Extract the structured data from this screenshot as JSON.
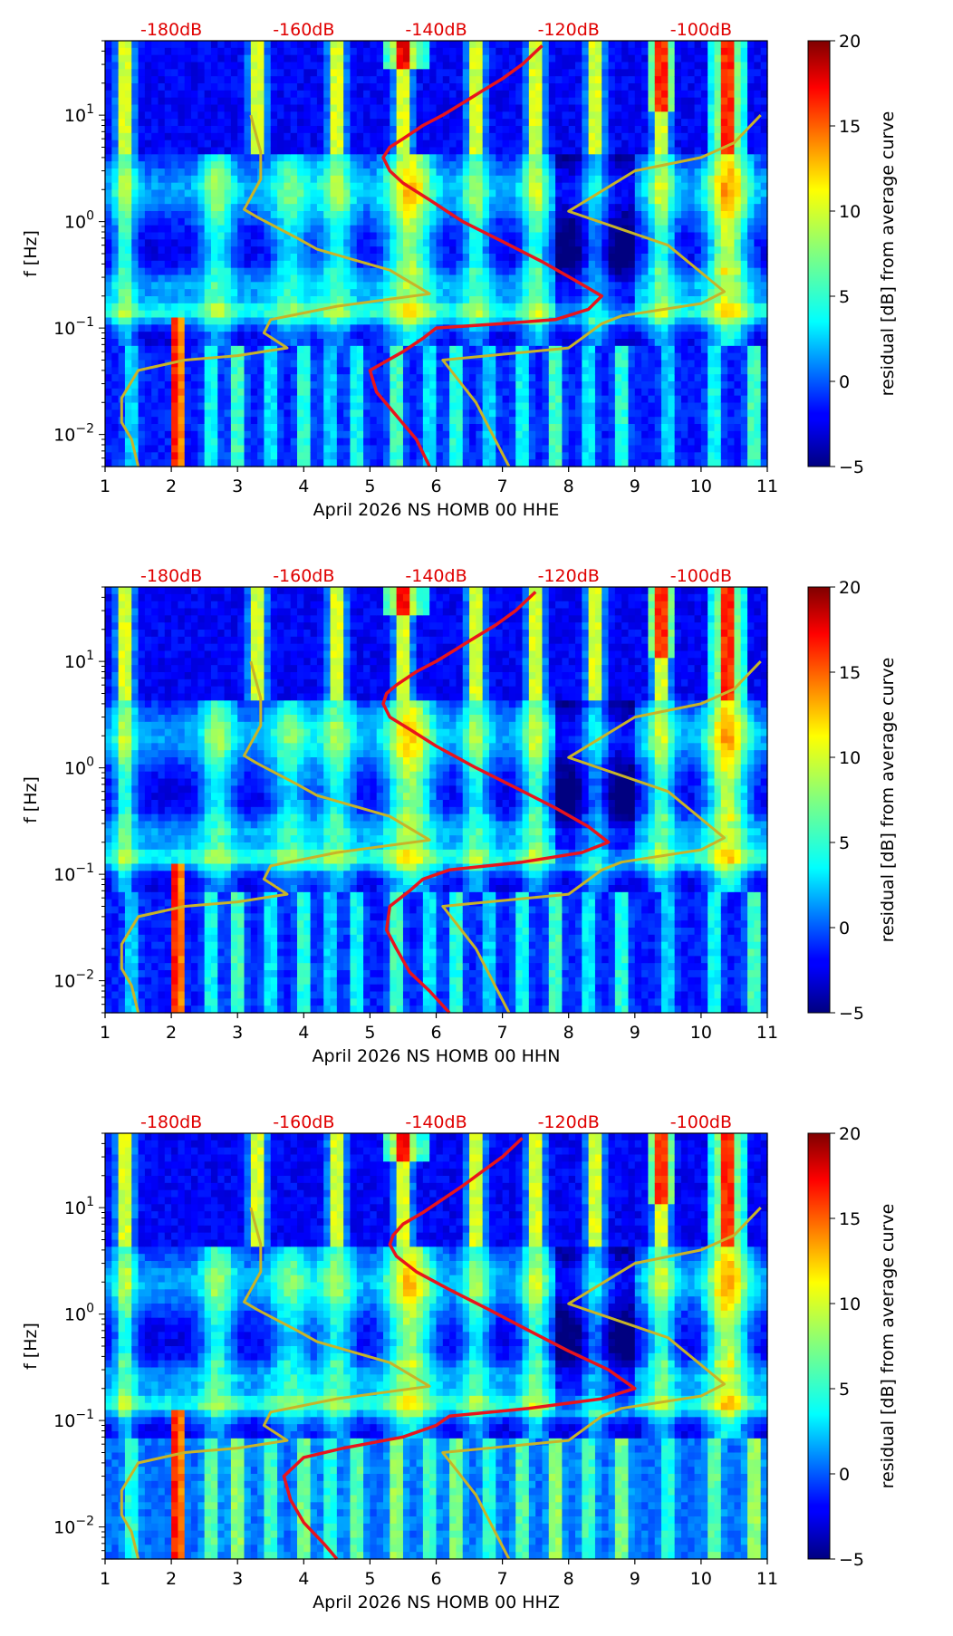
{
  "chart_data": [
    {
      "type": "heatmap",
      "title": "",
      "xlabel": "April 2026 NS HOMB 00 HHE",
      "ylabel": "f [Hz]",
      "xlim": [
        1,
        11
      ],
      "ylim": [
        0.005,
        50
      ],
      "y_scale": "log",
      "x_ticks": [
        "1",
        "2",
        "3",
        "4",
        "5",
        "6",
        "7",
        "8",
        "9",
        "10",
        "11"
      ],
      "y_ticks": [
        {
          "value": 0.01,
          "base": "10",
          "exp": "−2"
        },
        {
          "value": 0.1,
          "base": "10",
          "exp": "−1"
        },
        {
          "value": 1,
          "base": "10",
          "exp": "0"
        },
        {
          "value": 10,
          "base": "10",
          "exp": "1"
        }
      ],
      "top_db_labels": [
        {
          "x": 2.0,
          "label": "-180dB"
        },
        {
          "x": 4.0,
          "label": "-160dB"
        },
        {
          "x": 6.0,
          "label": "-140dB"
        },
        {
          "x": 8.0,
          "label": "-120dB"
        },
        {
          "x": 10.0,
          "label": "-100dB"
        }
      ],
      "colorbar": {
        "label": "residual [dB] from average curve",
        "min": -5,
        "max": 20,
        "ticks": [
          "20",
          "15",
          "10",
          "5",
          "0",
          "−5"
        ]
      },
      "red_curve": [
        [
          7.6,
          45
        ],
        [
          7.3,
          30
        ],
        [
          7.0,
          22
        ],
        [
          6.7,
          17
        ],
        [
          6.4,
          13
        ],
        [
          6.1,
          10
        ],
        [
          5.8,
          8
        ],
        [
          5.5,
          6
        ],
        [
          5.3,
          5
        ],
        [
          5.2,
          4
        ],
        [
          5.3,
          3
        ],
        [
          5.5,
          2.3
        ],
        [
          5.9,
          1.6
        ],
        [
          6.4,
          1.0
        ],
        [
          7.0,
          0.65
        ],
        [
          7.6,
          0.42
        ],
        [
          8.1,
          0.28
        ],
        [
          8.5,
          0.2
        ],
        [
          8.3,
          0.15
        ],
        [
          7.8,
          0.12
        ],
        [
          7.0,
          0.11
        ],
        [
          6.0,
          0.1
        ],
        [
          5.8,
          0.08
        ],
        [
          5.5,
          0.06
        ],
        [
          5.0,
          0.04
        ],
        [
          5.1,
          0.025
        ],
        [
          5.4,
          0.015
        ],
        [
          5.7,
          0.009
        ],
        [
          5.9,
          0.005
        ]
      ],
      "yellow_curve_left": [
        [
          1.5,
          0.005
        ],
        [
          1.4,
          0.009
        ],
        [
          1.25,
          0.013
        ],
        [
          1.25,
          0.022
        ],
        [
          1.5,
          0.04
        ],
        [
          2.2,
          0.05
        ],
        [
          3.0,
          0.055
        ],
        [
          3.75,
          0.065
        ],
        [
          3.4,
          0.09
        ],
        [
          3.5,
          0.12
        ],
        [
          4.5,
          0.16
        ],
        [
          5.9,
          0.21
        ],
        [
          5.3,
          0.35
        ],
        [
          4.2,
          0.55
        ],
        [
          3.9,
          0.7
        ],
        [
          3.3,
          1.1
        ],
        [
          3.1,
          1.3
        ],
        [
          3.35,
          2.5
        ],
        [
          3.35,
          4.5
        ],
        [
          3.2,
          10
        ]
      ],
      "yellow_curve_right": [
        [
          7.1,
          0.005
        ],
        [
          6.6,
          0.02
        ],
        [
          6.1,
          0.05
        ],
        [
          8.0,
          0.065
        ],
        [
          8.5,
          0.11
        ],
        [
          8.8,
          0.13
        ],
        [
          10.0,
          0.17
        ],
        [
          10.35,
          0.22
        ],
        [
          9.5,
          0.6
        ],
        [
          8.0,
          1.25
        ],
        [
          9.0,
          3.0
        ],
        [
          10.0,
          4.0
        ],
        [
          10.5,
          5.5
        ],
        [
          10.9,
          10
        ]
      ]
    },
    {
      "type": "heatmap",
      "title": "",
      "xlabel": "April 2026 NS HOMB 00 HHN",
      "ylabel": "f [Hz]",
      "xlim": [
        1,
        11
      ],
      "ylim": [
        0.005,
        50
      ],
      "y_scale": "log",
      "x_ticks": [
        "1",
        "2",
        "3",
        "4",
        "5",
        "6",
        "7",
        "8",
        "9",
        "10",
        "11"
      ],
      "y_ticks": [
        {
          "value": 0.01,
          "base": "10",
          "exp": "−2"
        },
        {
          "value": 0.1,
          "base": "10",
          "exp": "−1"
        },
        {
          "value": 1,
          "base": "10",
          "exp": "0"
        },
        {
          "value": 10,
          "base": "10",
          "exp": "1"
        }
      ],
      "top_db_labels": [
        {
          "x": 2.0,
          "label": "-180dB"
        },
        {
          "x": 4.0,
          "label": "-160dB"
        },
        {
          "x": 6.0,
          "label": "-140dB"
        },
        {
          "x": 8.0,
          "label": "-120dB"
        },
        {
          "x": 10.0,
          "label": "-100dB"
        }
      ],
      "colorbar": {
        "label": "residual [dB] from average curve",
        "min": -5,
        "max": 20,
        "ticks": [
          "20",
          "15",
          "10",
          "5",
          "0",
          "−5"
        ]
      },
      "red_curve": [
        [
          7.5,
          45
        ],
        [
          7.2,
          30
        ],
        [
          6.9,
          22
        ],
        [
          6.6,
          17
        ],
        [
          6.3,
          13
        ],
        [
          6.0,
          10
        ],
        [
          5.7,
          8
        ],
        [
          5.4,
          6
        ],
        [
          5.25,
          5
        ],
        [
          5.2,
          4
        ],
        [
          5.3,
          3
        ],
        [
          5.6,
          2.3
        ],
        [
          6.0,
          1.6
        ],
        [
          6.6,
          1.0
        ],
        [
          7.2,
          0.65
        ],
        [
          7.8,
          0.42
        ],
        [
          8.3,
          0.28
        ],
        [
          8.6,
          0.2
        ],
        [
          8.2,
          0.16
        ],
        [
          7.3,
          0.13
        ],
        [
          6.2,
          0.11
        ],
        [
          5.8,
          0.09
        ],
        [
          5.6,
          0.07
        ],
        [
          5.3,
          0.05
        ],
        [
          5.25,
          0.03
        ],
        [
          5.4,
          0.02
        ],
        [
          5.6,
          0.012
        ],
        [
          5.9,
          0.008
        ],
        [
          6.2,
          0.005
        ]
      ],
      "yellow_curve_left": [
        [
          1.5,
          0.005
        ],
        [
          1.4,
          0.009
        ],
        [
          1.25,
          0.013
        ],
        [
          1.25,
          0.022
        ],
        [
          1.5,
          0.04
        ],
        [
          2.2,
          0.05
        ],
        [
          3.0,
          0.055
        ],
        [
          3.75,
          0.065
        ],
        [
          3.4,
          0.09
        ],
        [
          3.5,
          0.12
        ],
        [
          4.5,
          0.16
        ],
        [
          5.9,
          0.21
        ],
        [
          5.3,
          0.35
        ],
        [
          4.2,
          0.55
        ],
        [
          3.9,
          0.7
        ],
        [
          3.3,
          1.1
        ],
        [
          3.1,
          1.3
        ],
        [
          3.35,
          2.5
        ],
        [
          3.35,
          4.5
        ],
        [
          3.2,
          10
        ]
      ],
      "yellow_curve_right": [
        [
          7.1,
          0.005
        ],
        [
          6.6,
          0.02
        ],
        [
          6.1,
          0.05
        ],
        [
          8.0,
          0.065
        ],
        [
          8.5,
          0.11
        ],
        [
          8.8,
          0.13
        ],
        [
          10.0,
          0.17
        ],
        [
          10.35,
          0.22
        ],
        [
          9.5,
          0.6
        ],
        [
          8.0,
          1.25
        ],
        [
          9.0,
          3.0
        ],
        [
          10.0,
          4.0
        ],
        [
          10.5,
          5.5
        ],
        [
          10.9,
          10
        ]
      ]
    },
    {
      "type": "heatmap",
      "title": "",
      "xlabel": "April 2026 NS HOMB 00 HHZ",
      "ylabel": "f [Hz]",
      "xlim": [
        1,
        11
      ],
      "ylim": [
        0.005,
        50
      ],
      "y_scale": "log",
      "x_ticks": [
        "1",
        "2",
        "3",
        "4",
        "5",
        "6",
        "7",
        "8",
        "9",
        "10",
        "11"
      ],
      "y_ticks": [
        {
          "value": 0.01,
          "base": "10",
          "exp": "−2"
        },
        {
          "value": 0.1,
          "base": "10",
          "exp": "−1"
        },
        {
          "value": 1,
          "base": "10",
          "exp": "0"
        },
        {
          "value": 10,
          "base": "10",
          "exp": "1"
        }
      ],
      "top_db_labels": [
        {
          "x": 2.0,
          "label": "-180dB"
        },
        {
          "x": 4.0,
          "label": "-160dB"
        },
        {
          "x": 6.0,
          "label": "-140dB"
        },
        {
          "x": 8.0,
          "label": "-120dB"
        },
        {
          "x": 10.0,
          "label": "-100dB"
        }
      ],
      "colorbar": {
        "label": "residual [dB] from average curve",
        "min": -5,
        "max": 20,
        "ticks": [
          "20",
          "15",
          "10",
          "5",
          "0",
          "−5"
        ]
      },
      "red_curve": [
        [
          7.3,
          45
        ],
        [
          7.0,
          30
        ],
        [
          6.7,
          22
        ],
        [
          6.4,
          16
        ],
        [
          6.1,
          12
        ],
        [
          5.8,
          9
        ],
        [
          5.5,
          7
        ],
        [
          5.35,
          5.5
        ],
        [
          5.3,
          4.5
        ],
        [
          5.4,
          3.5
        ],
        [
          5.7,
          2.5
        ],
        [
          6.2,
          1.7
        ],
        [
          6.8,
          1.1
        ],
        [
          7.4,
          0.7
        ],
        [
          8.0,
          0.45
        ],
        [
          8.6,
          0.3
        ],
        [
          9.0,
          0.2
        ],
        [
          8.5,
          0.16
        ],
        [
          7.4,
          0.13
        ],
        [
          6.2,
          0.11
        ],
        [
          6.0,
          0.09
        ],
        [
          5.5,
          0.07
        ],
        [
          4.6,
          0.055
        ],
        [
          4.0,
          0.045
        ],
        [
          3.7,
          0.03
        ],
        [
          3.8,
          0.018
        ],
        [
          4.0,
          0.011
        ],
        [
          4.3,
          0.007
        ],
        [
          4.5,
          0.005
        ]
      ],
      "yellow_curve_left": [
        [
          1.5,
          0.005
        ],
        [
          1.4,
          0.009
        ],
        [
          1.25,
          0.013
        ],
        [
          1.25,
          0.022
        ],
        [
          1.5,
          0.04
        ],
        [
          2.2,
          0.05
        ],
        [
          3.0,
          0.055
        ],
        [
          3.75,
          0.065
        ],
        [
          3.4,
          0.09
        ],
        [
          3.5,
          0.12
        ],
        [
          4.5,
          0.16
        ],
        [
          5.9,
          0.21
        ],
        [
          5.3,
          0.35
        ],
        [
          4.2,
          0.55
        ],
        [
          3.9,
          0.7
        ],
        [
          3.3,
          1.1
        ],
        [
          3.1,
          1.3
        ],
        [
          3.35,
          2.5
        ],
        [
          3.35,
          4.5
        ],
        [
          3.2,
          10
        ]
      ],
      "yellow_curve_right": [
        [
          7.1,
          0.005
        ],
        [
          6.6,
          0.02
        ],
        [
          6.1,
          0.05
        ],
        [
          8.0,
          0.065
        ],
        [
          8.5,
          0.11
        ],
        [
          8.8,
          0.13
        ],
        [
          10.0,
          0.17
        ],
        [
          10.35,
          0.22
        ],
        [
          9.5,
          0.6
        ],
        [
          8.0,
          1.25
        ],
        [
          9.0,
          3.0
        ],
        [
          10.0,
          4.0
        ],
        [
          10.5,
          5.5
        ],
        [
          10.9,
          10
        ]
      ]
    }
  ],
  "colors": {
    "red_curve": "#e8141c",
    "yellow_curve": "#c8b428",
    "db_label": "#e00000"
  }
}
